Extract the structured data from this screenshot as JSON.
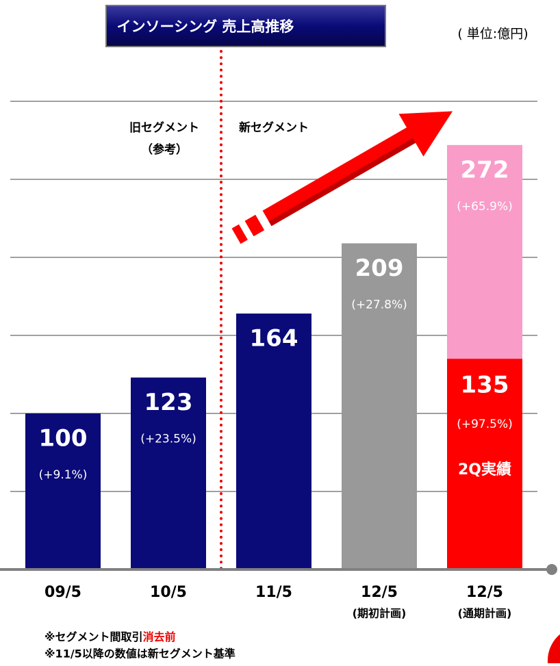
{
  "chart_data": {
    "type": "bar",
    "title": "インソーシング 売上高推移",
    "unit": "( 単位:億円)",
    "categories": [
      "09/5",
      "10/5",
      "11/5",
      "12/5",
      "12/5"
    ],
    "sublabels": [
      null,
      null,
      null,
      "(期初計画)",
      "(通期計画)"
    ],
    "values": [
      100,
      123,
      164,
      209,
      272
    ],
    "growth_labels": [
      "(+9.1%)",
      "(+23.5%)",
      null,
      "(+27.8%)",
      "(+65.9%)"
    ],
    "colors": [
      "#0a0a78",
      "#0a0a78",
      "#0a0a78",
      "#999999",
      "#f99cc8"
    ],
    "overlay_values": [
      null,
      null,
      null,
      null,
      135
    ],
    "overlay_growth_labels": [
      null,
      null,
      null,
      null,
      "(+97.5%)"
    ],
    "overlay_texts": [
      null,
      null,
      null,
      null,
      "2Q実績"
    ],
    "overlay_color": "#ff0000",
    "ylim": [
      0,
      300
    ],
    "yticks": [
      50,
      100,
      150,
      200,
      250,
      300
    ],
    "grid": true,
    "annotations": {
      "old_segment": "旧セグメント",
      "old_segment_note": "（参考）",
      "new_segment": "新セグメント"
    },
    "footnotes": {
      "line1": "※セグメント間取引",
      "line1_red": "消去前",
      "line2": "※11/5以降の数値は新セグメント基準"
    }
  }
}
